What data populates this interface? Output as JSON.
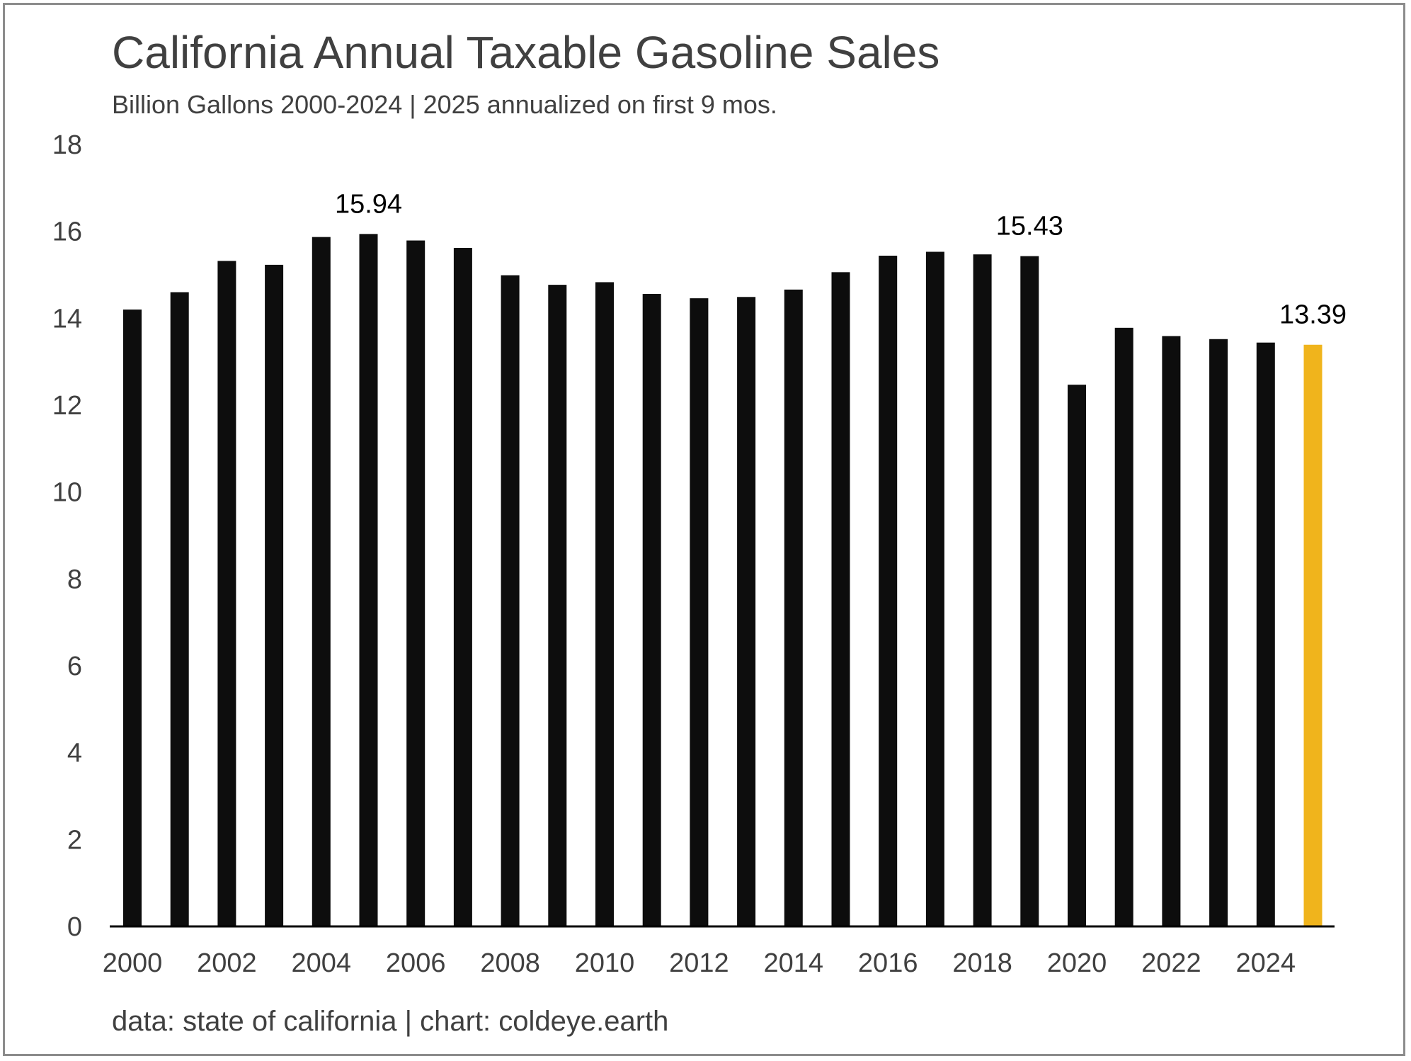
{
  "chart_data": {
    "type": "bar",
    "title": "California Annual Taxable Gasoline Sales",
    "subtitle": "Billion Gallons 2000-2024 | 2025 annualized on first 9 mos.",
    "source_note": "data: state of california | chart: coldeye.earth",
    "xlabel": "",
    "ylabel": "",
    "ylim": [
      0,
      18
    ],
    "yticks": [
      "0",
      "2",
      "4",
      "6",
      "8",
      "10",
      "12",
      "14",
      "16",
      "18"
    ],
    "xtick_labels": [
      "2000",
      "2002",
      "2004",
      "2006",
      "2008",
      "2010",
      "2012",
      "2014",
      "2016",
      "2018",
      "2020",
      "2022",
      "2024"
    ],
    "categories": [
      "2000",
      "2001",
      "2002",
      "2003",
      "2004",
      "2005",
      "2006",
      "2007",
      "2008",
      "2009",
      "2010",
      "2011",
      "2012",
      "2013",
      "2014",
      "2015",
      "2016",
      "2017",
      "2018",
      "2019",
      "2020",
      "2021",
      "2022",
      "2023",
      "2024",
      "2025"
    ],
    "values": [
      14.2,
      14.6,
      15.32,
      15.23,
      15.87,
      15.94,
      15.79,
      15.62,
      14.99,
      14.77,
      14.83,
      14.56,
      14.46,
      14.49,
      14.66,
      15.06,
      15.44,
      15.53,
      15.47,
      15.43,
      12.47,
      13.78,
      13.59,
      13.52,
      13.44,
      13.39
    ],
    "bar_colors": {
      "default": "#0d0d0d",
      "highlight": "#f0b41c"
    },
    "highlight_category": "2025",
    "data_labels": [
      {
        "category": "2005",
        "text": "15.94"
      },
      {
        "category": "2019",
        "text": "15.43"
      },
      {
        "category": "2025",
        "text": "13.39"
      }
    ],
    "grid": false,
    "legend": "none"
  }
}
